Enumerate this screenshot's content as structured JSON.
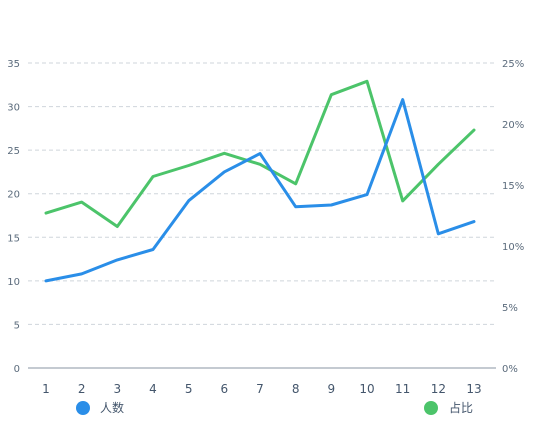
{
  "chart_data": {
    "type": "line",
    "x": [
      "1",
      "2",
      "3",
      "4",
      "5",
      "6",
      "7",
      "8",
      "9",
      "10",
      "11",
      "12",
      "13"
    ],
    "series": [
      {
        "name": "人数",
        "axis": "left",
        "color": "#2a8ee8",
        "values": [
          10,
          10.8,
          12.4,
          13.6,
          19.2,
          22.5,
          24.6,
          18.5,
          18.7,
          19.9,
          30.8,
          15.4,
          16.8
        ]
      },
      {
        "name": "占比",
        "axis": "right",
        "color": "#4cc46a",
        "values": [
          12.7,
          13.6,
          11.6,
          15.7,
          16.6,
          17.6,
          16.7,
          15.1,
          22.4,
          23.5,
          13.7,
          16.7,
          19.5
        ]
      }
    ],
    "y_left": {
      "ylim": [
        0,
        35
      ],
      "ticks": [
        "0",
        "5",
        "10",
        "15",
        "20",
        "25",
        "30",
        "35"
      ]
    },
    "y_right": {
      "ylim": [
        0,
        25
      ],
      "ticks": [
        "0%",
        "5%",
        "10%",
        "15%",
        "20%",
        "25%"
      ]
    },
    "grid": true,
    "grid_style": "dashed",
    "legend_position": "bottom",
    "title": "",
    "xlabel": "",
    "ylabel": ""
  }
}
